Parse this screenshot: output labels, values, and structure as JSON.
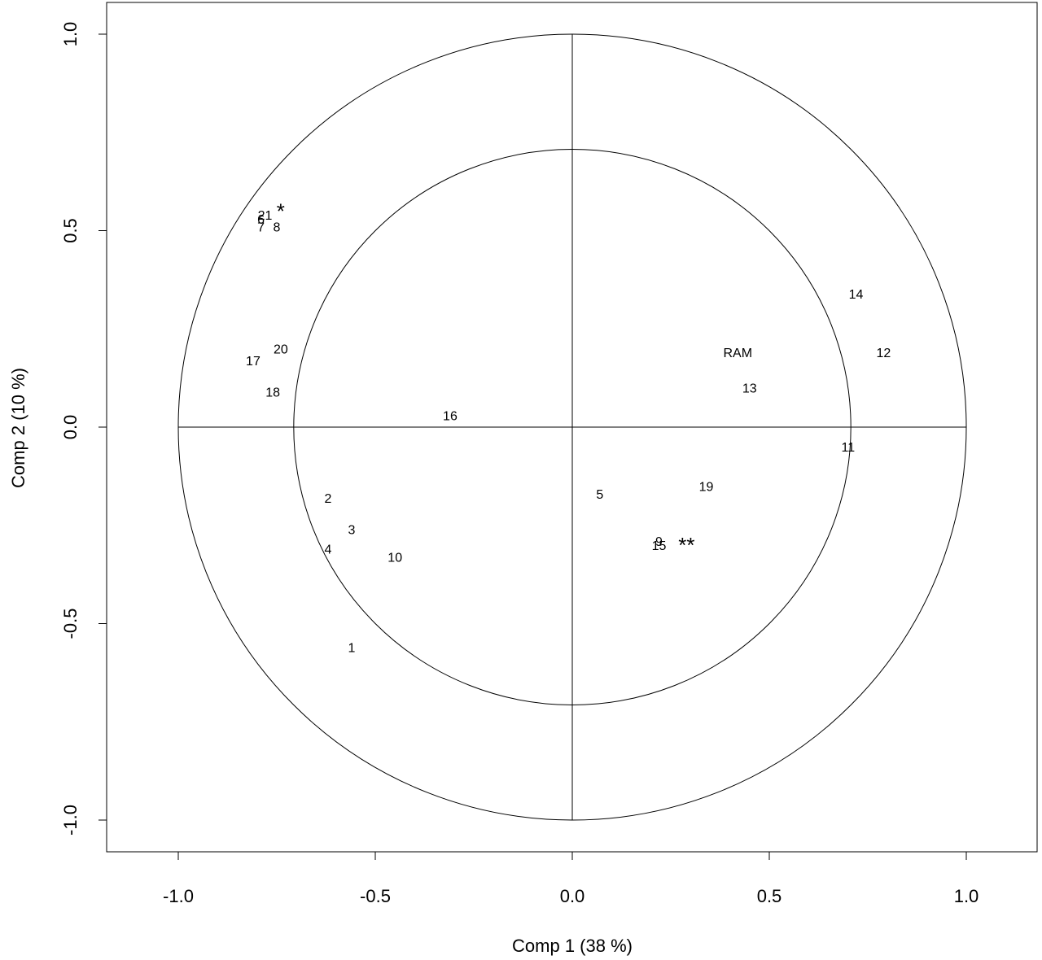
{
  "chart_data": {
    "type": "scatter",
    "title": "",
    "xlabel": "Comp 1 (38 %)",
    "ylabel": "Comp 2 (10 %)",
    "xlim": [
      -1.2,
      1.2
    ],
    "ylim": [
      -1.08,
      1.08
    ],
    "x_ticks": [
      -1.0,
      -0.5,
      0.0,
      0.5,
      1.0
    ],
    "x_tick_labels": [
      "-1.0",
      "-0.5",
      "0.0",
      "0.5",
      "1.0"
    ],
    "y_ticks": [
      -1.0,
      -0.5,
      0.0,
      0.5,
      1.0
    ],
    "y_tick_labels": [
      "-1.0",
      "-0.5",
      "0.0",
      "0.5",
      "1.0"
    ],
    "grid": false,
    "circles": [
      {
        "radius": 1.0
      },
      {
        "radius": 0.707
      }
    ],
    "reference_lines": [
      {
        "orientation": "horizontal",
        "value": 0
      },
      {
        "orientation": "vertical",
        "value": 0
      }
    ],
    "points": [
      {
        "label": "1",
        "x": -0.56,
        "y": -0.56
      },
      {
        "label": "2",
        "x": -0.62,
        "y": -0.18
      },
      {
        "label": "3",
        "x": -0.56,
        "y": -0.26
      },
      {
        "label": "4",
        "x": -0.62,
        "y": -0.31
      },
      {
        "label": "5",
        "x": 0.07,
        "y": -0.17
      },
      {
        "label": "6",
        "x": -0.79,
        "y": 0.53
      },
      {
        "label": "7",
        "x": -0.79,
        "y": 0.51
      },
      {
        "label": "8",
        "x": -0.75,
        "y": 0.51
      },
      {
        "label": "9",
        "x": 0.22,
        "y": -0.29
      },
      {
        "label": "10",
        "x": -0.45,
        "y": -0.33
      },
      {
        "label": "11",
        "x": 0.7,
        "y": -0.05
      },
      {
        "label": "12",
        "x": 0.79,
        "y": 0.19
      },
      {
        "label": "13",
        "x": 0.45,
        "y": 0.1
      },
      {
        "label": "14",
        "x": 0.72,
        "y": 0.34
      },
      {
        "label": "15",
        "x": 0.22,
        "y": -0.3
      },
      {
        "label": "16",
        "x": -0.31,
        "y": 0.03
      },
      {
        "label": "17",
        "x": -0.81,
        "y": 0.17
      },
      {
        "label": "18",
        "x": -0.76,
        "y": 0.09
      },
      {
        "label": "19",
        "x": 0.34,
        "y": -0.15
      },
      {
        "label": "20",
        "x": -0.74,
        "y": 0.2
      },
      {
        "label": "21",
        "x": -0.78,
        "y": 0.54
      },
      {
        "label": "RAM",
        "x": 0.42,
        "y": 0.19
      }
    ],
    "annotations": [
      {
        "text": "*",
        "x": -0.74,
        "y": 0.56
      },
      {
        "text": "**",
        "x": 0.29,
        "y": -0.29
      }
    ]
  }
}
